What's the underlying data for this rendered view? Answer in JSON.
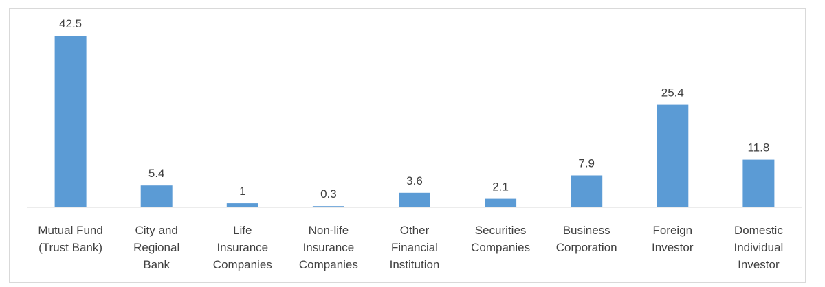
{
  "chart_data": {
    "type": "bar",
    "title": "",
    "xlabel": "",
    "ylabel": "",
    "ylim": [
      0,
      45
    ],
    "grid": false,
    "legend": "none",
    "bar_color": "#5b9bd5",
    "axis_color": "#d9d9d9",
    "label_color": "#404040",
    "categories": [
      [
        "Mutual Fund",
        "(Trust Bank)"
      ],
      [
        "City and",
        "Regional",
        "Bank"
      ],
      [
        "Life",
        "Insurance",
        "Companies"
      ],
      [
        "Non-life",
        "Insurance",
        "Companies"
      ],
      [
        "Other",
        "Financial",
        "Institution"
      ],
      [
        "Securities",
        "Companies"
      ],
      [
        "Business",
        "Corporation"
      ],
      [
        "Foreign",
        "Investor"
      ],
      [
        "Domestic",
        "Individual",
        "Investor"
      ]
    ],
    "values": [
      42.5,
      5.4,
      1,
      0.3,
      3.6,
      2.1,
      7.9,
      25.4,
      11.8
    ],
    "value_labels": [
      "42.5",
      "5.4",
      "1",
      "0.3",
      "3.6",
      "2.1",
      "7.9",
      "25.4",
      "11.8"
    ]
  }
}
